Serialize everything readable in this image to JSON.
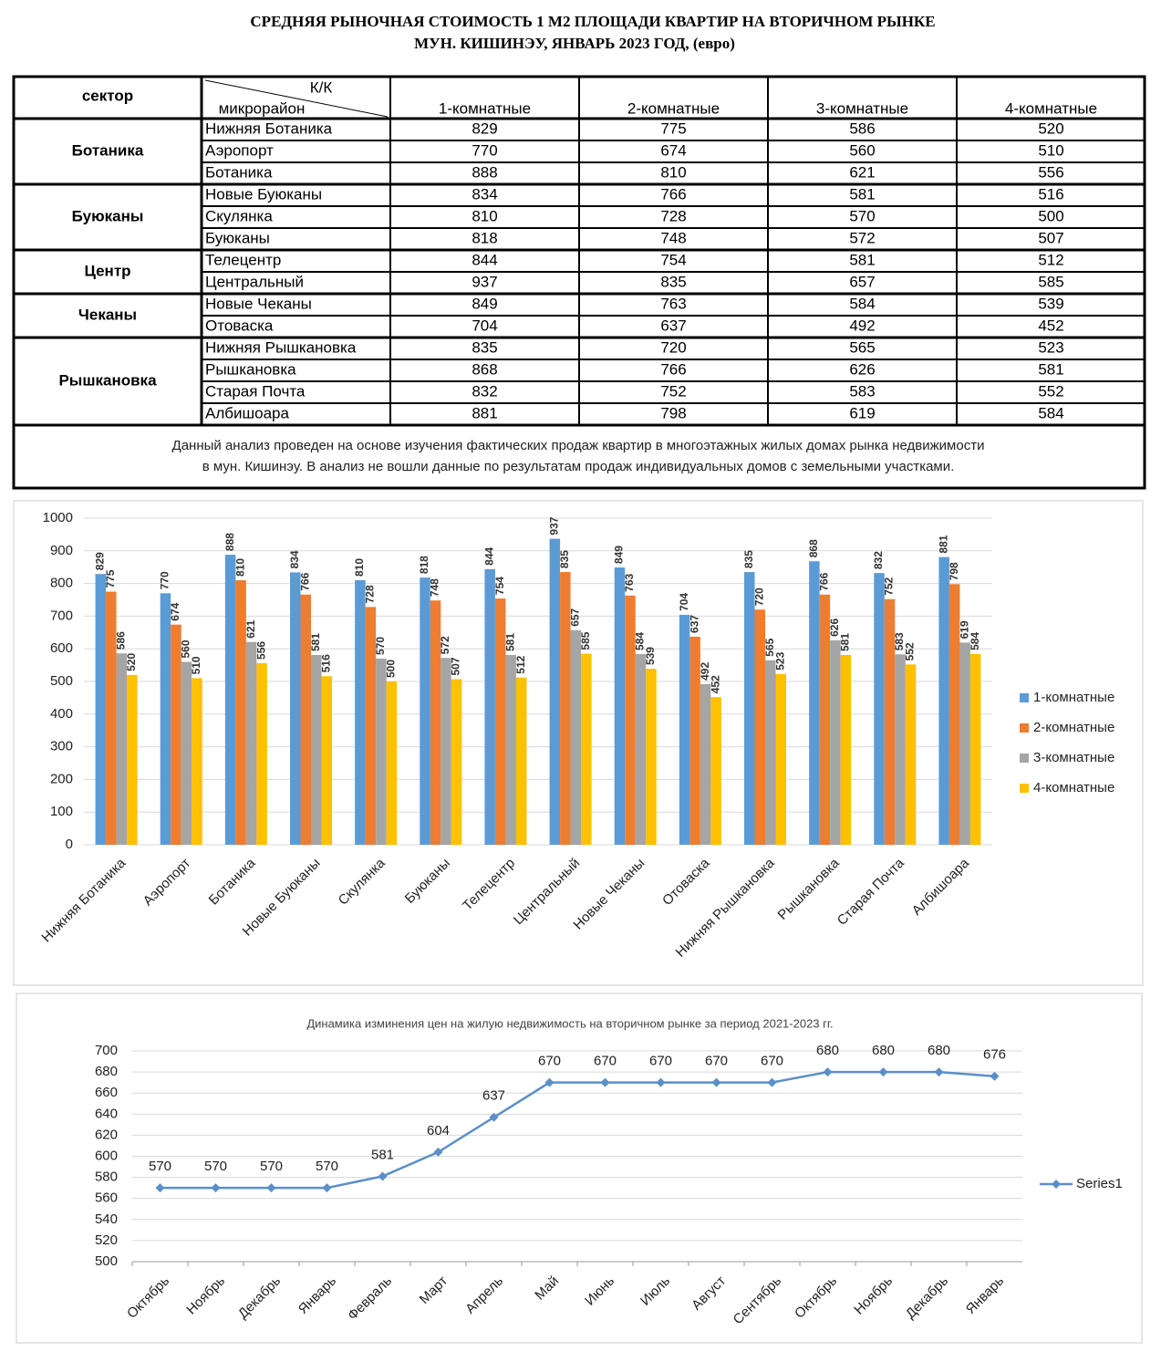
{
  "header": {
    "title_line1": "СРЕДНЯЯ  РЫНОЧНАЯ  СТОИМОСТЬ  1 М2  ПЛОЩАДИ  КВАРТИР НА ВТОРИЧНОМ РЫНКЕ",
    "title_line2": "МУН.  КИШИНЭУ, ЯНВАРЬ 2023 ГОД, (евро)"
  },
  "table": {
    "sector_header": "сектор",
    "corner_top": "К/К",
    "corner_bottom": "микрорайон",
    "columns": [
      "1-комнатные",
      "2-комнатные",
      "3-комнатные",
      "4-комнатные"
    ],
    "groups": [
      {
        "sector": "Ботаника",
        "rows": [
          {
            "name": "Нижняя Ботаника",
            "values": [
              829,
              775,
              586,
              520
            ]
          },
          {
            "name": "Аэропорт",
            "values": [
              770,
              674,
              560,
              510
            ]
          },
          {
            "name": "Ботаника",
            "values": [
              888,
              810,
              621,
              556
            ]
          }
        ]
      },
      {
        "sector": "Буюканы",
        "rows": [
          {
            "name": "Новые Буюканы",
            "values": [
              834,
              766,
              581,
              516
            ]
          },
          {
            "name": "Скулянка",
            "values": [
              810,
              728,
              570,
              500
            ]
          },
          {
            "name": "Буюканы",
            "values": [
              818,
              748,
              572,
              507
            ]
          }
        ]
      },
      {
        "sector": "Центр",
        "rows": [
          {
            "name": "Телецентр",
            "values": [
              844,
              754,
              581,
              512
            ]
          },
          {
            "name": "Центральный",
            "values": [
              937,
              835,
              657,
              585
            ]
          }
        ]
      },
      {
        "sector": "Чеканы",
        "rows": [
          {
            "name": "Новые Чеканы",
            "values": [
              849,
              763,
              584,
              539
            ]
          },
          {
            "name": "Отоваска",
            "values": [
              704,
              637,
              492,
              452
            ]
          }
        ]
      },
      {
        "sector": "Рышкановка",
        "rows": [
          {
            "name": "Нижняя Рышкановка",
            "values": [
              835,
              720,
              565,
              523
            ]
          },
          {
            "name": "Рышкановка",
            "values": [
              868,
              766,
              626,
              581
            ]
          },
          {
            "name": "Старая Почта",
            "values": [
              832,
              752,
              583,
              552
            ]
          },
          {
            "name": "Албишоара",
            "values": [
              881,
              798,
              619,
              584
            ]
          }
        ]
      }
    ],
    "note": [
      "Данный анализ проведен на основе изучения фактических продаж квартир в многоэтажных жилых домах рынка недвижимости",
      "в мун. Кишинэу. В анализ не вошли данные по результатам  продаж индивидуальных домов с земельными участками."
    ]
  },
  "chart_data": [
    {
      "type": "bar",
      "categories": [
        "Нижняя Ботаника",
        "Аэропорт",
        "Ботаника",
        "Новые Буюканы",
        "Скулянка",
        "Буюканы",
        "Телецентр",
        "Центральный",
        "Новые Чеканы",
        "Отоваска",
        "Нижняя Рышкановка",
        "Рышкановка",
        "Старая Почта",
        "Албишоара"
      ],
      "series": [
        {
          "name": "1-комнатные",
          "color": "#5b9bd5",
          "values": [
            829,
            770,
            888,
            834,
            810,
            818,
            844,
            937,
            849,
            704,
            835,
            868,
            832,
            881
          ]
        },
        {
          "name": "2-комнатные",
          "color": "#ed7d31",
          "values": [
            775,
            674,
            810,
            766,
            728,
            748,
            754,
            835,
            763,
            637,
            720,
            766,
            752,
            798
          ]
        },
        {
          "name": "3-комнатные",
          "color": "#a5a5a5",
          "values": [
            586,
            560,
            621,
            581,
            570,
            572,
            581,
            657,
            584,
            492,
            565,
            626,
            583,
            619
          ]
        },
        {
          "name": "4-комнатные",
          "color": "#ffc000",
          "values": [
            520,
            510,
            556,
            516,
            500,
            507,
            512,
            585,
            539,
            452,
            523,
            581,
            552,
            584
          ]
        }
      ],
      "ylim": [
        0,
        1000
      ],
      "yticks": [
        0,
        100,
        200,
        300,
        400,
        500,
        600,
        700,
        800,
        900,
        1000
      ],
      "grid": true,
      "legend": "right"
    },
    {
      "type": "line",
      "title": "Динамика изминения цен на жилую недвижимость на вторичном рынке за период 2021-2023 гг.",
      "categories": [
        "Октябрь",
        "Ноябрь",
        "Декабрь",
        "Январь",
        "Февраль",
        "Март",
        "Апрель",
        "Май",
        "Июнь",
        "Июль",
        "Август",
        "Сентябрь",
        "Октябрь",
        "Ноябрь",
        "Декабрь",
        "Январь"
      ],
      "series": [
        {
          "name": "Series1",
          "color": "#5b8fc7",
          "values": [
            570,
            570,
            570,
            570,
            581,
            604,
            637,
            670,
            670,
            670,
            670,
            670,
            680,
            680,
            680,
            676
          ]
        }
      ],
      "ylim": [
        500,
        700
      ],
      "yticks": [
        500,
        520,
        540,
        560,
        580,
        600,
        620,
        640,
        660,
        680,
        700
      ],
      "grid": true,
      "legend": "right"
    }
  ]
}
